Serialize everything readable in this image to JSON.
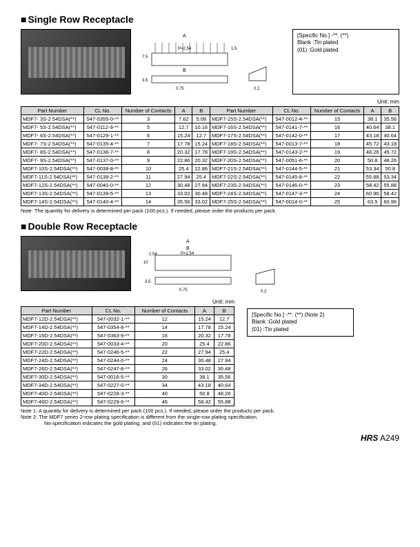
{
  "single": {
    "title": "Single Row Receptacle",
    "spec_box": {
      "line1": "[Specific No.]   -**. (**)",
      "line2": "Blank   :Tin plated",
      "line3": "(01)     :Gold plated"
    },
    "unit": "Unit: mm",
    "headers": [
      "Part Number",
      "CL No.",
      "Number of Contacts",
      "A",
      "B"
    ],
    "rows_left": [
      [
        "MDF7- 3S-2.54DSA(**)",
        "547-0355-0-**",
        "3",
        "7.62",
        "5.08"
      ],
      [
        "MDF7- 5S-2.54DSA(**)",
        "547-0112-9-**",
        "5",
        "12.7",
        "10.16"
      ],
      [
        "MDF7- 6S-2.54DSA(**)",
        "547-0129-1-**",
        "6",
        "15.24",
        "12.7"
      ],
      [
        "MDF7- 7S-2.54DSA(**)",
        "547-0135-4-**",
        "7",
        "17.78",
        "15.24"
      ],
      [
        "MDF7- 8S-2.54DSA(**)",
        "547-0136-7-**",
        "8",
        "20.32",
        "17.78"
      ],
      [
        "MDF7- 9S-2.54DSA(**)",
        "547-0137-0-**",
        "9",
        "22.86",
        "20.32"
      ],
      [
        "MDF7-10S-2.54DSA(**)",
        "547-0038-8-**",
        "10",
        "25.4",
        "22.86"
      ],
      [
        "MDF7-11S-2.54DSA(**)",
        "547-0138-2-**",
        "11",
        "27.94",
        "25.4"
      ],
      [
        "MDF7-12S-2.54DSA(**)",
        "547-0040-0-**",
        "12",
        "30.48",
        "27.94"
      ],
      [
        "MDF7-13S-2.54DSA(**)",
        "547-0139-5-**",
        "13",
        "33.02",
        "30.48"
      ],
      [
        "MDF7-14S-2.54DSA(**)",
        "547-0140-4-**",
        "14",
        "35.56",
        "33.02"
      ]
    ],
    "rows_right": [
      [
        "MDF7-15S-2.54DSA(**)",
        "547-0012-4-**",
        "15",
        "38.1",
        "35.56"
      ],
      [
        "MDF7-16S-2.54DSA(**)",
        "547-0141-7-**",
        "16",
        "40.64",
        "38.1"
      ],
      [
        "MDF7-17S-2.54DSA(**)",
        "547-0142-0-**",
        "17",
        "43.18",
        "40.64"
      ],
      [
        "MDF7-18S-2.54DSA(**)",
        "547-0013-7-**",
        "18",
        "45.72",
        "43.18"
      ],
      [
        "MDF7-19S-2.54DSA(**)",
        "547-0143-2-**",
        "19",
        "48.26",
        "45.72"
      ],
      [
        "MDF7-20S-2.54DSA(**)",
        "547-0051-6-**",
        "20",
        "50.8",
        "48.26"
      ],
      [
        "MDF7-21S-2.54DSA(**)",
        "547-0144-5-**",
        "21",
        "53.34",
        "50.8"
      ],
      [
        "MDF7-22S-2.54DSA(**)",
        "547-0145-8-**",
        "22",
        "55.88",
        "53.34"
      ],
      [
        "MDF7-23S-2.54DSA(**)",
        "547-0146-0-**",
        "23",
        "58.42",
        "55.88"
      ],
      [
        "MDF7-24S-2.54DSA(**)",
        "547-0147-3-**",
        "24",
        "60.96",
        "58.42"
      ],
      [
        "MDF7-25S-2.54DSA(**)",
        "547-0014-0-**",
        "25",
        "63.5",
        "60.96"
      ]
    ],
    "note": "Note: The quantity for delivery is determined per pack (100 pcs.). If needed, please order the products per pack."
  },
  "double": {
    "title": "Double Row Receptacle",
    "spec_box": {
      "line1": "[Specific No.]   -**. (**) (Note 2)",
      "line2": "Blank   :Gold plated",
      "line3": "(01)     :Tin plated"
    },
    "unit": "Unit: mm",
    "headers": [
      "Part Number",
      "CL No.",
      "Number of Contacts",
      "A",
      "B"
    ],
    "rows": [
      [
        "MDF7-12D-2.54DSA(**)",
        "547-0032-1-**",
        "12",
        "15.24",
        "12.7"
      ],
      [
        "MDF7-14D-2.54DSA(**)",
        "547-0354-8-**",
        "14",
        "17.78",
        "15.24"
      ],
      [
        "MDF7-16D-2.54DSA(**)",
        "547-0363-9-**",
        "16",
        "20.32",
        "17.78"
      ],
      [
        "MDF7-20D-2.54DSA(**)",
        "547-0033-4-**",
        "20",
        "25.4",
        "22.86"
      ],
      [
        "MDF7-22D-2.54DSA(**)",
        "547-0246-5-**",
        "22",
        "27.94",
        "25.4"
      ],
      [
        "MDF7-24D-2.54DSA(**)",
        "547-0244-0-**",
        "24",
        "30.48",
        "27.94"
      ],
      [
        "MDF7-26D-2.54DSA(**)",
        "547-0247-8-**",
        "26",
        "33.02",
        "30.48"
      ],
      [
        "MDF7-30D-2.54DSA(**)",
        "547-0016-5-**",
        "30",
        "38.1",
        "35.56"
      ],
      [
        "MDF7-34D-2.54DSA(**)",
        "547-0227-0-**",
        "34",
        "43.18",
        "40.64"
      ],
      [
        "MDF7-40D-2.54DSA(**)",
        "547-0228-3-**",
        "40",
        "50.8",
        "48.26"
      ],
      [
        "MDF7-46D-2.54DSA(**)",
        "547-0229-6-**",
        "46",
        "58.42",
        "55.88"
      ]
    ],
    "note1": "Note 1: A quantity for delivery is determined per pack (100 pcs.). If needed, please order the products per pack.",
    "note2": "Note 2: The MDF7 series 2-row plating specification is different from the single-row plating specification.",
    "note2b": "No-specification indicates the gold plating, and (01) indicates the tin plating."
  },
  "dimensions": {
    "pitch": "P=2.54",
    "dim_75": "7.5",
    "dim_15": "1.5",
    "dim_3": "3",
    "dim_35": "3.5",
    "dim_075": "0.75",
    "dim_02": "0.2",
    "dim_10": "10",
    "dim_254": "2.54",
    "labelA": "A",
    "labelB": "B"
  },
  "footer": {
    "brand": "HRS",
    "page": "A249"
  }
}
